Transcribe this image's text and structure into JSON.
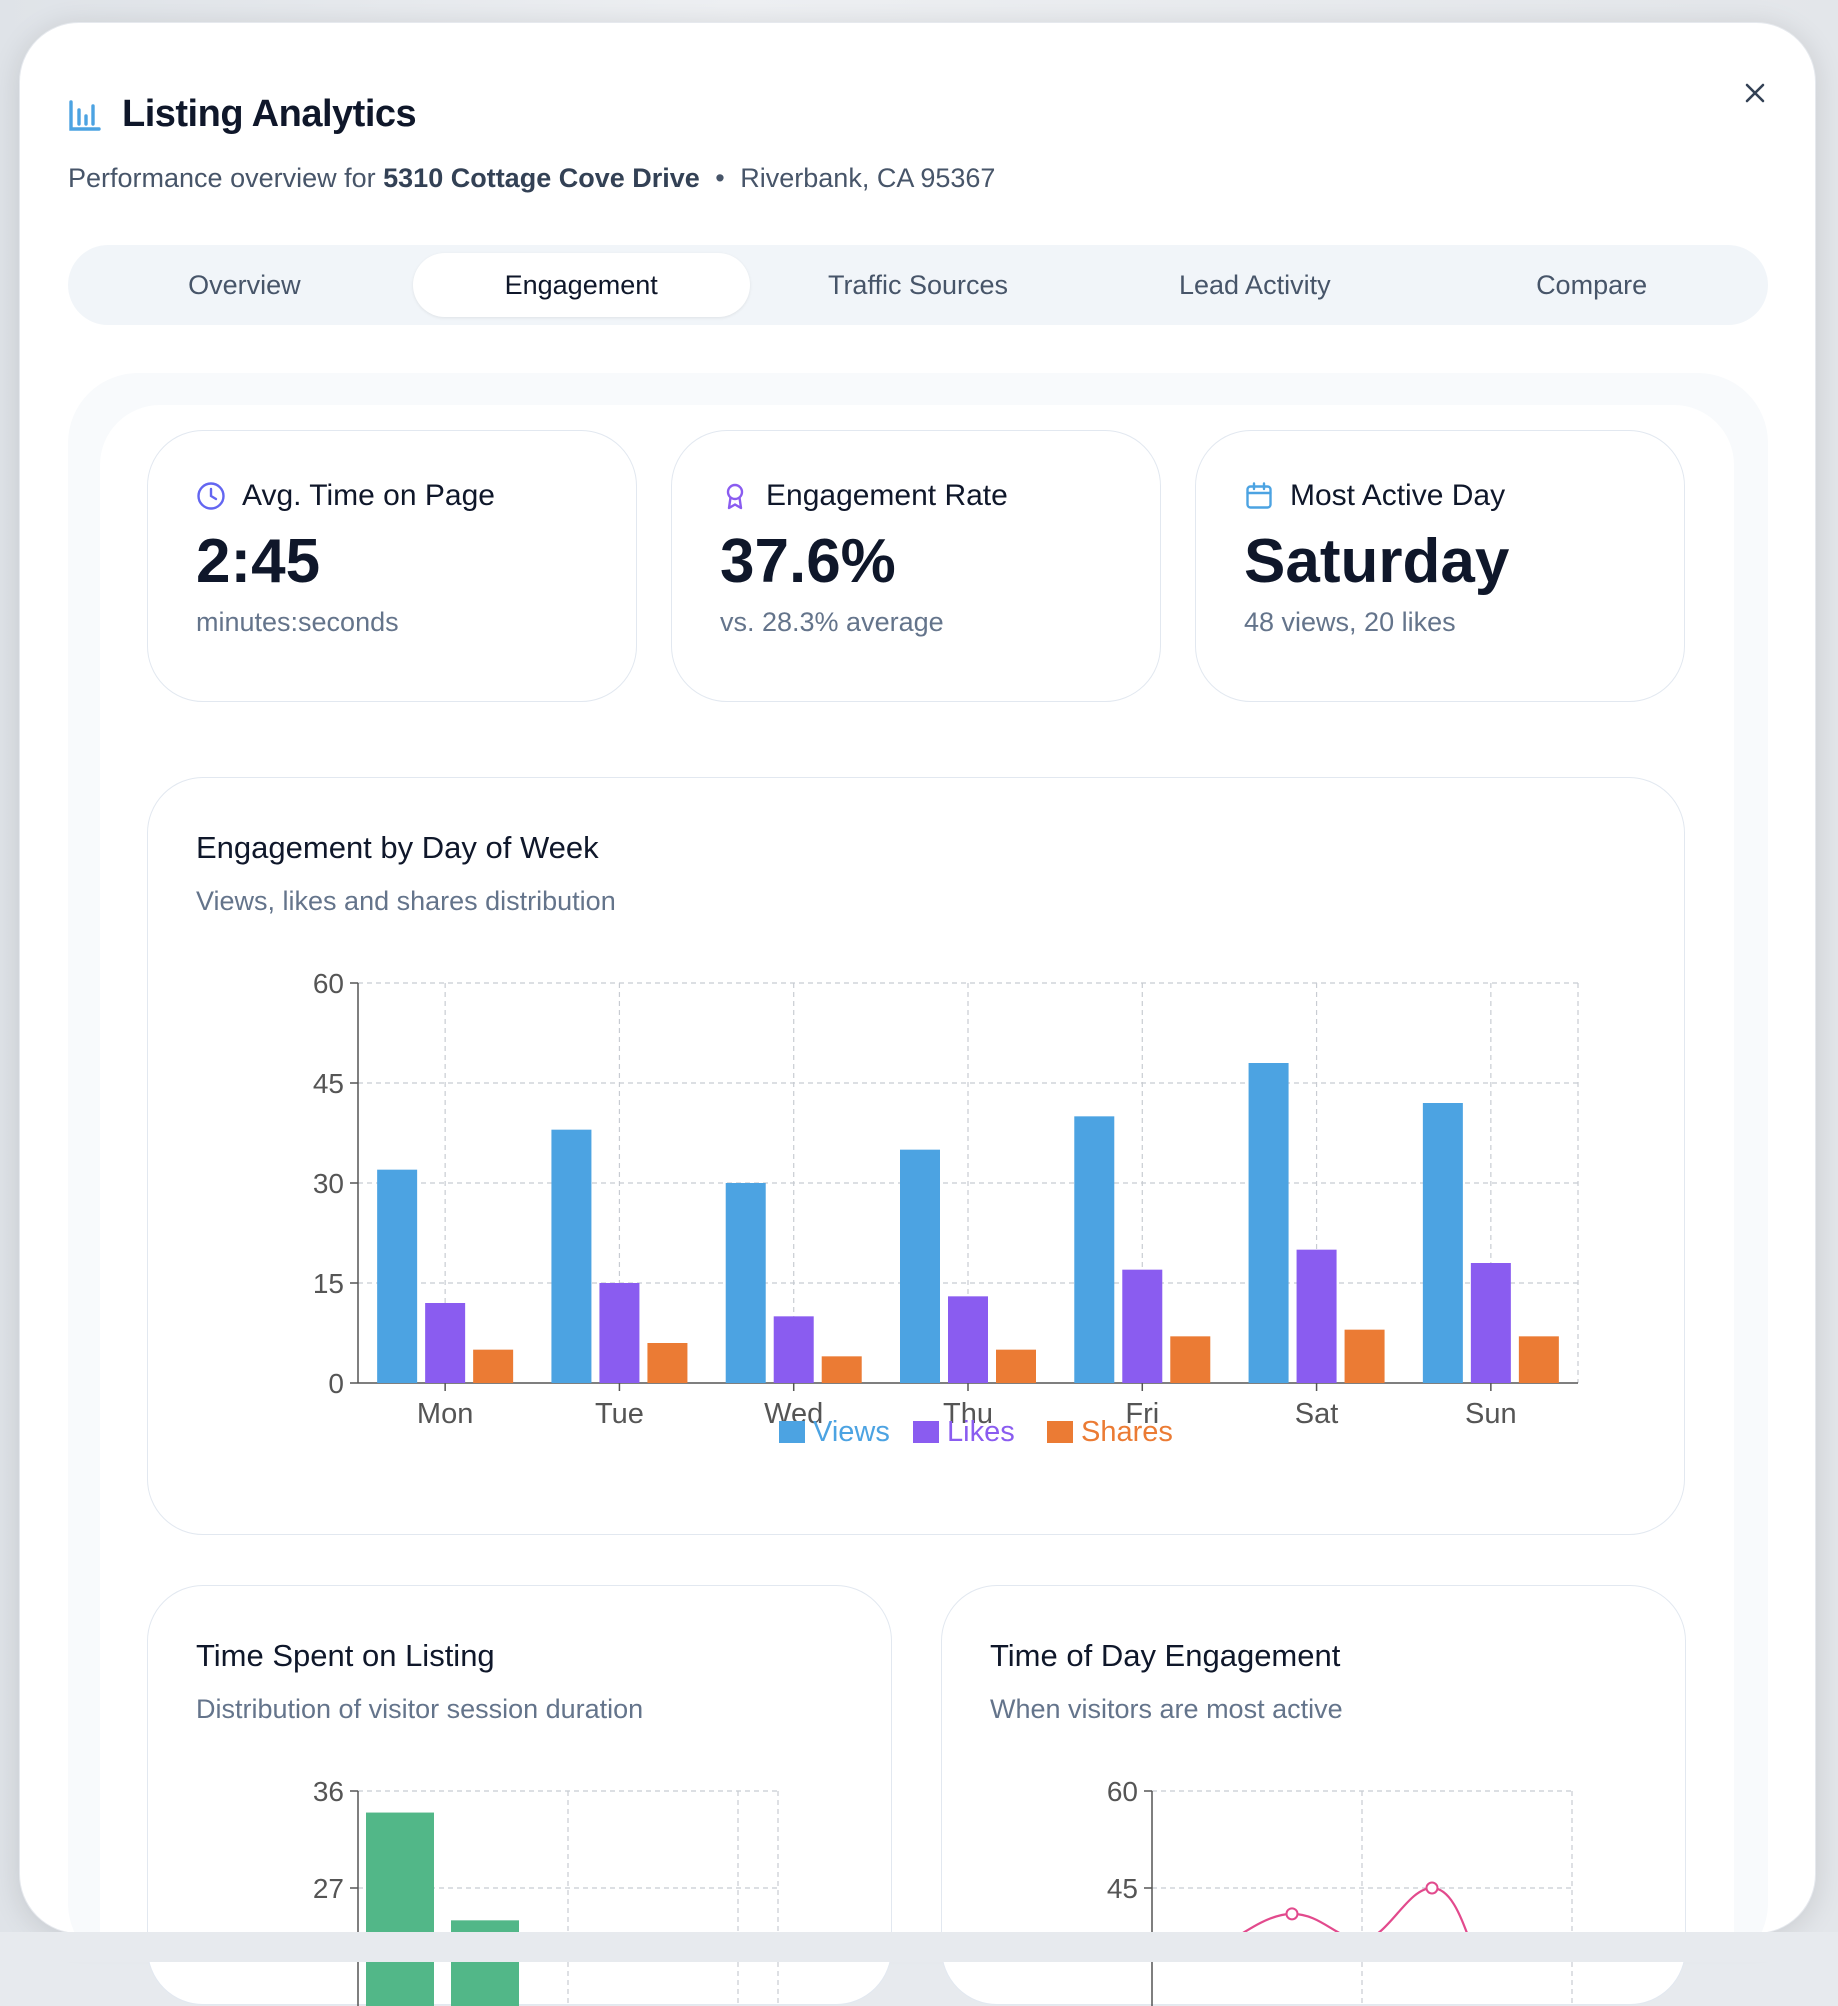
{
  "header": {
    "title": "Listing Analytics",
    "subtitle_prefix": "Performance overview for",
    "address": "5310 Cottage Cove Drive",
    "separator": "•",
    "city": "Riverbank, CA 95367"
  },
  "tabs": [
    {
      "label": "Overview"
    },
    {
      "label": "Engagement",
      "active": true
    },
    {
      "label": "Traffic Sources"
    },
    {
      "label": "Lead Activity"
    },
    {
      "label": "Compare"
    }
  ],
  "stats": [
    {
      "icon": "clock-icon",
      "title": "Avg. Time on Page",
      "value": "2:45",
      "sub": "minutes:seconds"
    },
    {
      "icon": "award-icon",
      "title": "Engagement Rate",
      "value": "37.6%",
      "sub": "vs. 28.3% average"
    },
    {
      "icon": "calendar-icon",
      "title": "Most Active Day",
      "value": "Saturday",
      "sub": "48 views, 20 likes"
    }
  ],
  "colors": {
    "views": "#4ca3e2",
    "likes": "#8a5cf0",
    "shares": "#eb7b34",
    "sessions": "#52b788",
    "time_of_day": "#e24a8d",
    "accent_blue": "#4ca3e2"
  },
  "chart_data": [
    {
      "type": "bar",
      "title": "Engagement by Day of Week",
      "subtitle": "Views, likes and shares distribution",
      "categories": [
        "Mon",
        "Tue",
        "Wed",
        "Thu",
        "Fri",
        "Sat",
        "Sun"
      ],
      "series": [
        {
          "name": "Views",
          "values": [
            32,
            38,
            30,
            35,
            40,
            48,
            42
          ]
        },
        {
          "name": "Likes",
          "values": [
            12,
            15,
            10,
            13,
            17,
            20,
            18
          ]
        },
        {
          "name": "Shares",
          "values": [
            5,
            6,
            4,
            5,
            7,
            8,
            7
          ]
        }
      ],
      "ylim": [
        0,
        60
      ],
      "yticks": [
        0,
        15,
        30,
        45,
        60
      ],
      "grid": true,
      "legend": "bottom"
    },
    {
      "type": "bar",
      "title": "Time Spent on Listing",
      "subtitle": "Distribution of visitor session duration",
      "values_visible": [
        34,
        24
      ],
      "ylim": [
        0,
        36
      ],
      "yticks": [
        27,
        36
      ],
      "grid": true
    },
    {
      "type": "line",
      "title": "Time of Day Engagement",
      "subtitle": "When visitors are most active",
      "values_visible": [
        41,
        37,
        45
      ],
      "ylim": [
        0,
        60
      ],
      "yticks": [
        45,
        60
      ],
      "grid": true
    }
  ]
}
